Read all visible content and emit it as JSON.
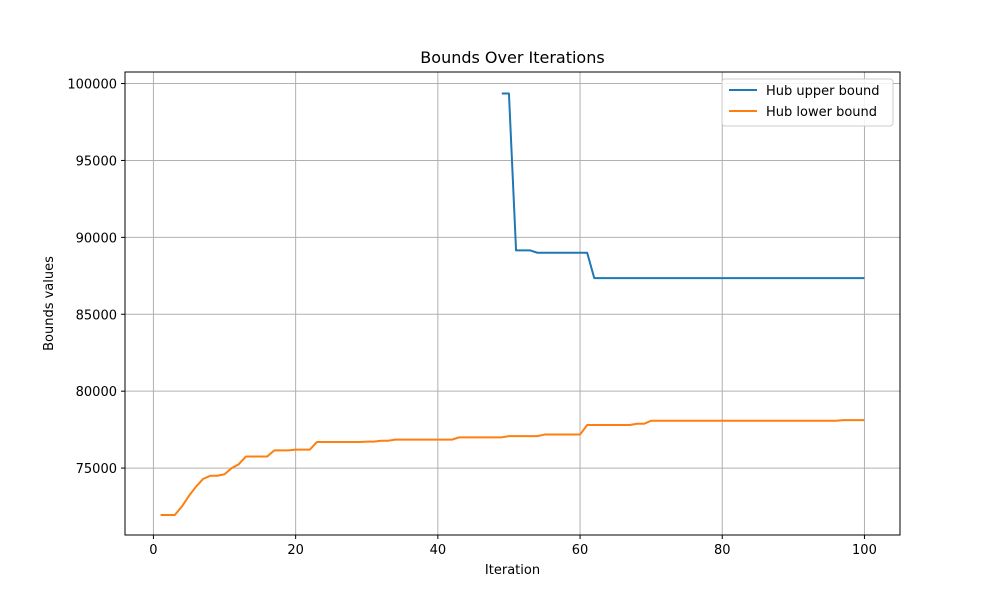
{
  "chart_data": {
    "type": "line",
    "title": "Bounds Over Iterations",
    "xlabel": "Iteration",
    "ylabel": "Bounds values",
    "xlim": [
      -4,
      105
    ],
    "ylim": [
      70650,
      100750
    ],
    "xticks": [
      0,
      20,
      40,
      60,
      80,
      100
    ],
    "yticks": [
      75000,
      80000,
      85000,
      90000,
      95000,
      100000
    ],
    "grid": true,
    "legend_position": "top-right",
    "colors": {
      "upper": "#1f77b4",
      "lower": "#ff7f0e",
      "grid": "#b0b0b0"
    },
    "series": [
      {
        "name": "Hub upper bound",
        "color": "#1f77b4",
        "x": [
          49,
          50,
          51,
          52,
          53,
          54,
          55,
          56,
          57,
          58,
          59,
          60,
          61,
          62,
          63,
          64,
          65,
          66,
          67,
          68,
          69,
          70,
          71,
          72,
          73,
          74,
          75,
          76,
          77,
          78,
          79,
          80,
          81,
          82,
          83,
          84,
          85,
          86,
          87,
          88,
          89,
          90,
          91,
          92,
          93,
          94,
          95,
          96,
          97,
          98,
          99,
          100
        ],
        "y": [
          99350,
          99350,
          89150,
          89150,
          89150,
          89000,
          89000,
          89000,
          89000,
          89000,
          89000,
          89000,
          89000,
          87350,
          87350,
          87350,
          87350,
          87350,
          87350,
          87350,
          87350,
          87350,
          87350,
          87350,
          87350,
          87350,
          87350,
          87350,
          87350,
          87350,
          87350,
          87350,
          87350,
          87350,
          87350,
          87350,
          87350,
          87350,
          87350,
          87350,
          87350,
          87350,
          87350,
          87350,
          87350,
          87350,
          87350,
          87350,
          87350,
          87350,
          87350,
          87350
        ]
      },
      {
        "name": "Hub lower bound",
        "color": "#ff7f0e",
        "x": [
          1,
          2,
          3,
          4,
          5,
          6,
          7,
          8,
          9,
          10,
          11,
          12,
          13,
          14,
          15,
          16,
          17,
          18,
          19,
          20,
          21,
          22,
          23,
          24,
          25,
          26,
          27,
          28,
          29,
          30,
          31,
          32,
          33,
          34,
          35,
          36,
          37,
          38,
          39,
          40,
          41,
          42,
          43,
          44,
          45,
          46,
          47,
          48,
          49,
          50,
          51,
          52,
          53,
          54,
          55,
          56,
          57,
          58,
          59,
          60,
          61,
          62,
          63,
          64,
          65,
          66,
          67,
          68,
          69,
          70,
          71,
          72,
          73,
          74,
          75,
          76,
          77,
          78,
          79,
          80,
          81,
          82,
          83,
          84,
          85,
          86,
          87,
          88,
          89,
          90,
          91,
          92,
          93,
          94,
          95,
          96,
          97,
          98,
          99,
          100
        ],
        "y": [
          71950,
          71950,
          71950,
          72500,
          73200,
          73800,
          74300,
          74500,
          74500,
          74600,
          75000,
          75250,
          75750,
          75750,
          75750,
          75750,
          76150,
          76150,
          76150,
          76200,
          76200,
          76200,
          76700,
          76700,
          76700,
          76700,
          76700,
          76700,
          76700,
          76720,
          76720,
          76780,
          76780,
          76850,
          76850,
          76850,
          76850,
          76850,
          76850,
          76850,
          76850,
          76850,
          77000,
          77000,
          77000,
          77000,
          77000,
          77000,
          77000,
          77080,
          77080,
          77080,
          77080,
          77080,
          77180,
          77180,
          77180,
          77180,
          77180,
          77180,
          77800,
          77800,
          77800,
          77800,
          77800,
          77800,
          77800,
          77880,
          77880,
          78080,
          78080,
          78080,
          78080,
          78080,
          78080,
          78080,
          78080,
          78080,
          78080,
          78080,
          78080,
          78080,
          78080,
          78080,
          78080,
          78080,
          78080,
          78080,
          78080,
          78080,
          78080,
          78080,
          78080,
          78080,
          78080,
          78080,
          78120,
          78120,
          78120,
          78120
        ]
      }
    ]
  }
}
